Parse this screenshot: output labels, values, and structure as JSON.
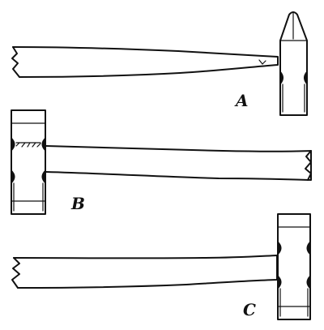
{
  "figure": {
    "hammers": [
      {
        "id": "a",
        "label": "A",
        "head": "cross-peen"
      },
      {
        "id": "b",
        "label": "B",
        "head": "double-face"
      },
      {
        "id": "c",
        "label": "C",
        "head": "double-face"
      }
    ]
  }
}
